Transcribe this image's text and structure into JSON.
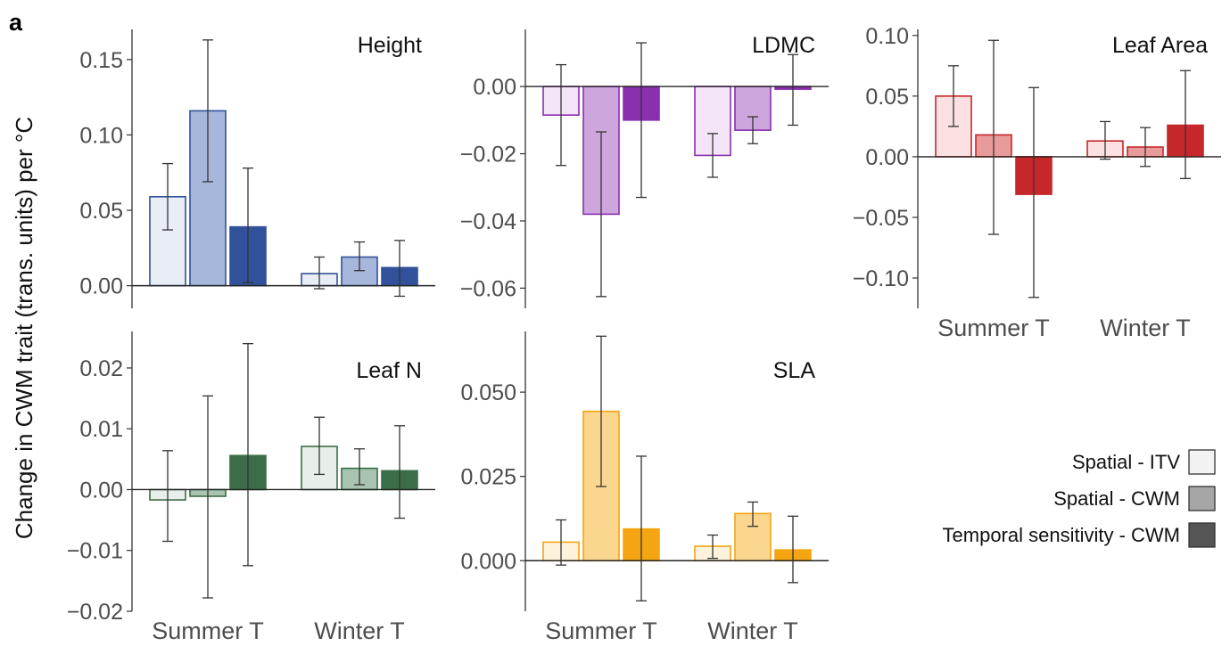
{
  "panel_letter": "a",
  "ylabel": "Change in CWM trait (trans. units) per °C",
  "legend": {
    "entries": [
      {
        "label": "Spatial - ITV",
        "color": "#f2f2f2"
      },
      {
        "label": "Spatial - CWM",
        "color": "#a6a6a6"
      },
      {
        "label": "Temporal sensitivity - CWM",
        "color": "#555555"
      }
    ]
  },
  "chart_data": [
    {
      "type": "bar",
      "title": "Height",
      "categories": [
        "Summer T",
        "Winter T"
      ],
      "show_xticks": false,
      "ylim": [
        -0.015,
        0.17
      ],
      "yticks": [
        0.0,
        0.05,
        0.1,
        0.15
      ],
      "ytick_labels": [
        "0.00",
        "0.05",
        "0.10",
        "0.15"
      ],
      "colors": [
        "#e8edf6",
        "#a6b7db",
        "#31529a"
      ],
      "series": [
        {
          "name": "Spatial - ITV",
          "values": [
            0.059,
            0.008
          ],
          "err_low": [
            0.037,
            -0.002
          ],
          "err_high": [
            0.081,
            0.019
          ]
        },
        {
          "name": "Spatial - CWM",
          "values": [
            0.116,
            0.019
          ],
          "err_low": [
            0.069,
            0.01
          ],
          "err_high": [
            0.163,
            0.029
          ]
        },
        {
          "name": "Temporal sensitivity - CWM",
          "values": [
            0.039,
            0.012
          ],
          "err_low": [
            0.002,
            -0.007
          ],
          "err_high": [
            0.078,
            0.03
          ]
        }
      ]
    },
    {
      "type": "bar",
      "title": "LDMC",
      "categories": [
        "Summer T",
        "Winter T"
      ],
      "show_xticks": false,
      "ylim": [
        -0.066,
        0.017
      ],
      "yticks": [
        0.0,
        -0.02,
        -0.04,
        -0.06
      ],
      "ytick_labels": [
        "0.00",
        "−0.02",
        "−0.04",
        "−0.06"
      ],
      "colors": [
        "#f3e5f7",
        "#cda6dd",
        "#8a2fae"
      ],
      "series": [
        {
          "name": "Spatial - ITV",
          "values": [
            -0.0085,
            -0.0205
          ],
          "err_low": [
            -0.0235,
            -0.027
          ],
          "err_high": [
            0.0065,
            -0.014
          ]
        },
        {
          "name": "Spatial - CWM",
          "values": [
            -0.038,
            -0.013
          ],
          "err_low": [
            -0.0625,
            -0.017
          ],
          "err_high": [
            -0.0135,
            -0.009
          ]
        },
        {
          "name": "Temporal sensitivity - CWM",
          "values": [
            -0.01,
            -0.0008
          ],
          "err_low": [
            -0.033,
            -0.0115
          ],
          "err_high": [
            0.013,
            0.0095
          ]
        }
      ]
    },
    {
      "type": "bar",
      "title": "Leaf Area",
      "categories": [
        "Summer T",
        "Winter T"
      ],
      "show_xticks": true,
      "ylim": [
        -0.125,
        0.105
      ],
      "yticks": [
        0.1,
        0.05,
        0.0,
        -0.05,
        -0.1
      ],
      "ytick_labels": [
        "0.10",
        "0.05",
        "0.00",
        "−0.05",
        "−0.10"
      ],
      "colors": [
        "#fbe1e1",
        "#e89b9b",
        "#c5272b"
      ],
      "series": [
        {
          "name": "Spatial - ITV",
          "values": [
            0.05,
            0.013
          ],
          "err_low": [
            0.025,
            -0.002
          ],
          "err_high": [
            0.075,
            0.029
          ]
        },
        {
          "name": "Spatial - CWM",
          "values": [
            0.018,
            0.008
          ],
          "err_low": [
            -0.064,
            -0.008
          ],
          "err_high": [
            0.096,
            0.024
          ]
        },
        {
          "name": "Temporal sensitivity - CWM",
          "values": [
            -0.031,
            0.026
          ],
          "err_low": [
            -0.116,
            -0.018
          ],
          "err_high": [
            0.057,
            0.071
          ]
        }
      ]
    },
    {
      "type": "bar",
      "title": "Leaf N",
      "categories": [
        "Summer T",
        "Winter T"
      ],
      "show_xticks": true,
      "ylim": [
        -0.02,
        0.026
      ],
      "yticks": [
        0.02,
        0.01,
        0.0,
        -0.01,
        -0.02
      ],
      "ytick_labels": [
        "0.02",
        "0.01",
        "0.00",
        "−0.01",
        "−0.02"
      ],
      "colors": [
        "#e8efea",
        "#a8c4b0",
        "#3b6e48"
      ],
      "series": [
        {
          "name": "Spatial - ITV",
          "values": [
            -0.0017,
            0.0071
          ],
          "err_low": [
            -0.0085,
            0.0025
          ],
          "err_high": [
            0.0064,
            0.0119
          ]
        },
        {
          "name": "Spatial - CWM",
          "values": [
            -0.0011,
            0.0035
          ],
          "err_low": [
            -0.0178,
            0.0008
          ],
          "err_high": [
            0.0154,
            0.0067
          ]
        },
        {
          "name": "Temporal sensitivity - CWM",
          "values": [
            0.0056,
            0.0031
          ],
          "err_low": [
            -0.0125,
            -0.0047
          ],
          "err_high": [
            0.024,
            0.0105
          ]
        }
      ]
    },
    {
      "type": "bar",
      "title": "SLA",
      "categories": [
        "Summer T",
        "Winter T"
      ],
      "show_xticks": true,
      "ylim": [
        -0.015,
        0.068
      ],
      "yticks": [
        0.05,
        0.025,
        0.0
      ],
      "ytick_labels": [
        "0.050",
        "0.025",
        "0.000"
      ],
      "colors": [
        "#fdf3dc",
        "#fbd68f",
        "#f5a511"
      ],
      "series": [
        {
          "name": "Spatial - ITV",
          "values": [
            0.0055,
            0.0043
          ],
          "err_low": [
            -0.0013,
            0.0007
          ],
          "err_high": [
            0.0121,
            0.0076
          ]
        },
        {
          "name": "Spatial - CWM",
          "values": [
            0.0443,
            0.014
          ],
          "err_low": [
            0.022,
            0.0102
          ],
          "err_high": [
            0.0666,
            0.0174
          ]
        },
        {
          "name": "Temporal sensitivity - CWM",
          "values": [
            0.0094,
            0.0032
          ],
          "err_low": [
            -0.0119,
            -0.0065
          ],
          "err_high": [
            0.031,
            0.0132
          ]
        }
      ]
    }
  ]
}
